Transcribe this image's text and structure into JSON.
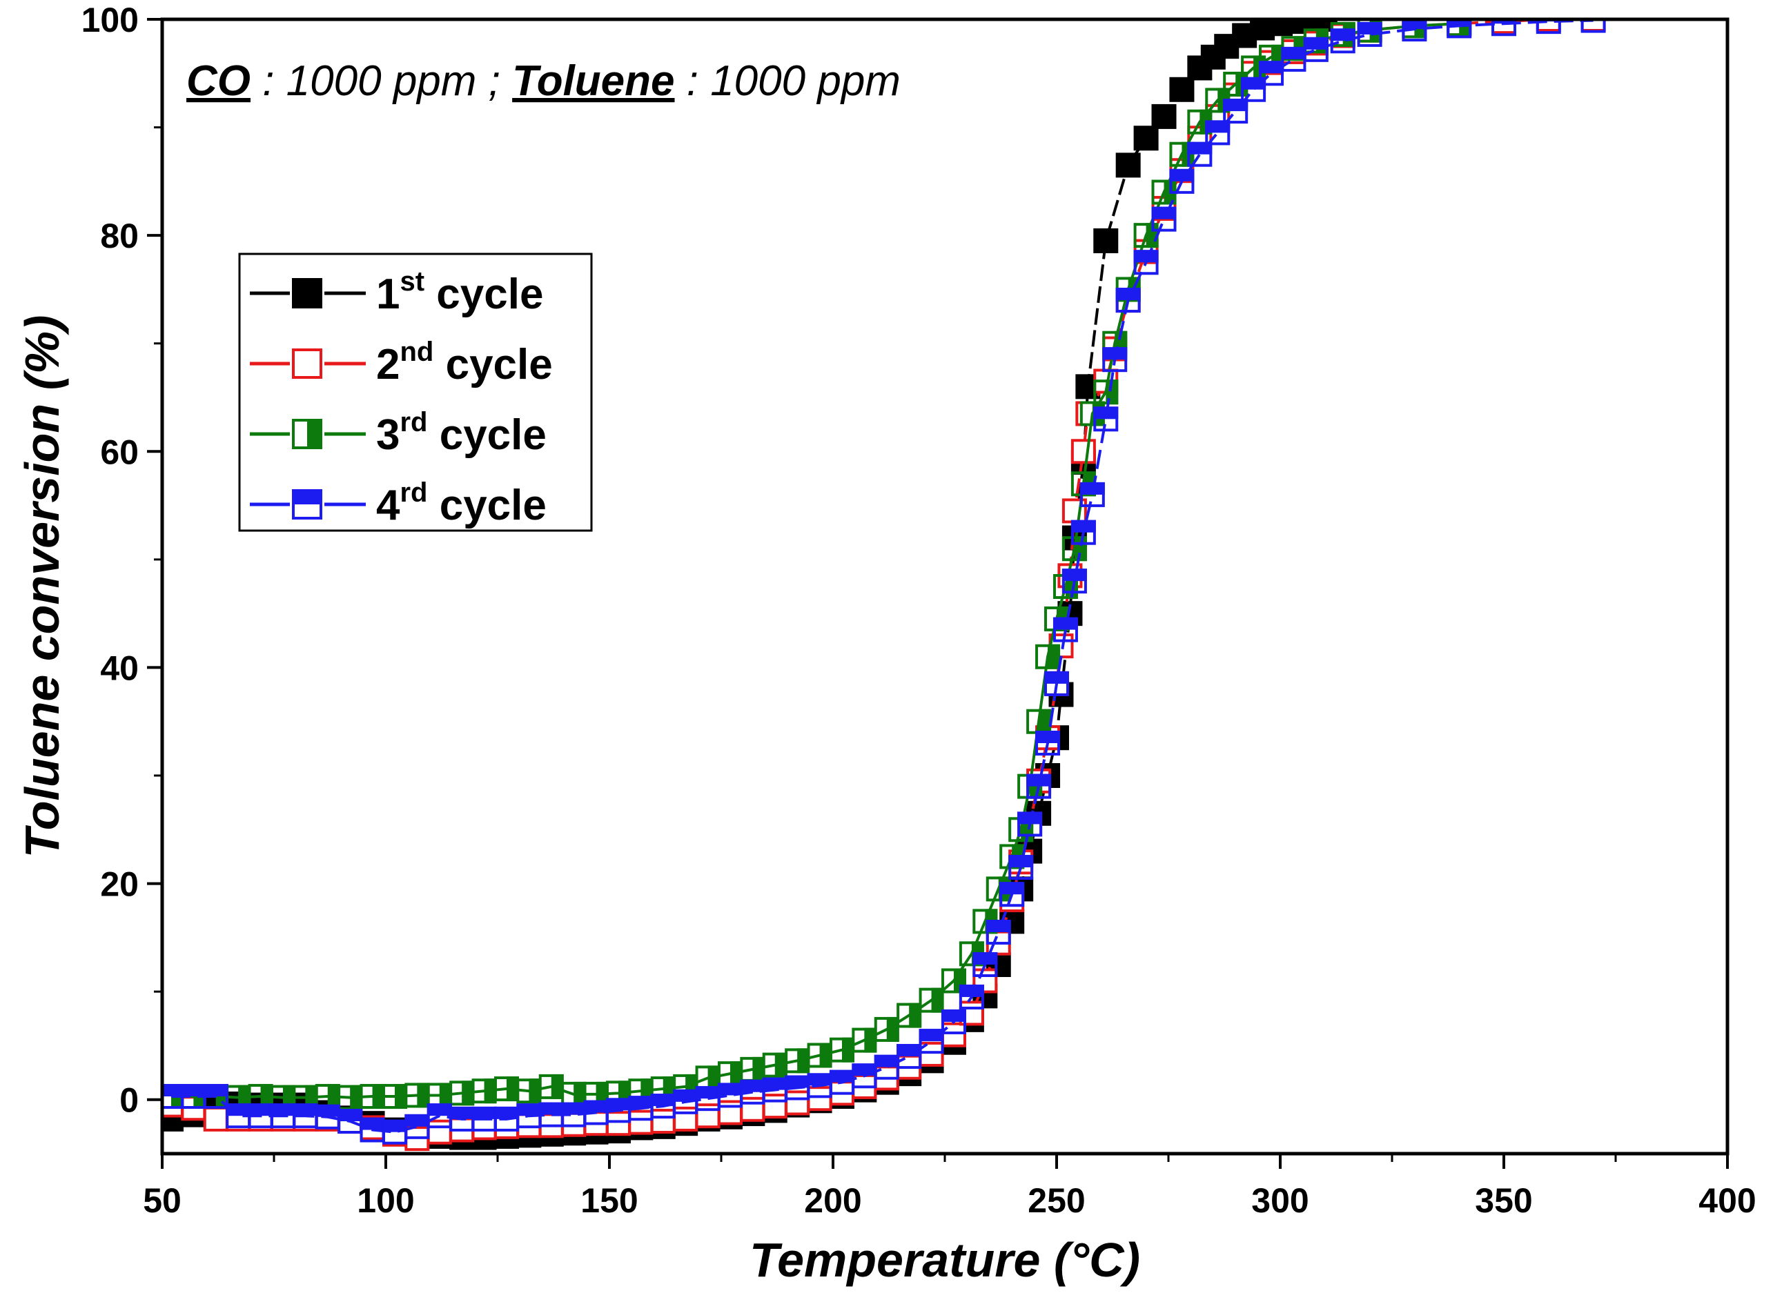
{
  "chart_data": {
    "type": "scatter",
    "title": "",
    "annotation": {
      "part1_bold": "CO",
      "part2": " : 1000 ppm ; ",
      "part3_bold": "Toluene",
      "part4": " : 1000 ppm"
    },
    "xlabel": "Temperature (°C)",
    "ylabel": "Toluene conversion (%)",
    "xlim": [
      50,
      400
    ],
    "ylim": [
      -5,
      100
    ],
    "xticks": [
      50,
      100,
      150,
      200,
      250,
      300,
      350,
      400
    ],
    "yticks": [
      0,
      20,
      40,
      60,
      80,
      100
    ],
    "grid": false,
    "legend_position": "upper-left",
    "series": [
      {
        "name": "1st cycle",
        "label_num": "1",
        "label_sup": "st",
        "label_rest": " cycle",
        "color": "#000000",
        "marker": "square-filled",
        "dash": "24,8",
        "points": [
          [
            52,
            -1.8
          ],
          [
            57,
            -1.4
          ],
          [
            62,
            -0.5
          ],
          [
            67,
            -0.4
          ],
          [
            72,
            -0.5
          ],
          [
            77,
            -0.5
          ],
          [
            82,
            -0.5
          ],
          [
            87,
            -1.2
          ],
          [
            92,
            -1.7
          ],
          [
            97,
            -2.2
          ],
          [
            102,
            -2.8
          ],
          [
            107,
            -3.3
          ],
          [
            112,
            -3.4
          ],
          [
            117,
            -3.5
          ],
          [
            122,
            -3.5
          ],
          [
            127,
            -3.4
          ],
          [
            132,
            -3.3
          ],
          [
            137,
            -3.2
          ],
          [
            142,
            -3.1
          ],
          [
            147,
            -3.0
          ],
          [
            152,
            -2.9
          ],
          [
            157,
            -2.6
          ],
          [
            162,
            -2.5
          ],
          [
            167,
            -2.2
          ],
          [
            172,
            -1.8
          ],
          [
            177,
            -1.6
          ],
          [
            182,
            -1.3
          ],
          [
            187,
            -1.0
          ],
          [
            192,
            -0.5
          ],
          [
            197,
            -0.1
          ],
          [
            202,
            0.3
          ],
          [
            207,
            0.9
          ],
          [
            212,
            1.6
          ],
          [
            217,
            2.4
          ],
          [
            222,
            3.6
          ],
          [
            227,
            5.3
          ],
          [
            231,
            7.4
          ],
          [
            234,
            9.6
          ],
          [
            237,
            12.5
          ],
          [
            240,
            16.5
          ],
          [
            242,
            19.5
          ],
          [
            244,
            23.0
          ],
          [
            246,
            26.5
          ],
          [
            248,
            30.0
          ],
          [
            250,
            33.5
          ],
          [
            251,
            37.5
          ],
          [
            253,
            45.0
          ],
          [
            254,
            52.0
          ],
          [
            256,
            59.0
          ],
          [
            257,
            66.0
          ],
          [
            261,
            79.5
          ],
          [
            266,
            86.5
          ],
          [
            270,
            89.0
          ],
          [
            274,
            91.0
          ],
          [
            278,
            93.5
          ],
          [
            282,
            95.5
          ],
          [
            285,
            96.5
          ],
          [
            288,
            97.5
          ],
          [
            292,
            98.5
          ],
          [
            296,
            99.2
          ],
          [
            300,
            99.6
          ],
          [
            305,
            99.8
          ],
          [
            310,
            100
          ],
          [
            320,
            100
          ],
          [
            330,
            100
          ],
          [
            340,
            100
          ],
          [
            350,
            100
          ]
        ]
      },
      {
        "name": "2nd cycle",
        "label_num": "2",
        "label_sup": "nd",
        "label_rest": " cycle",
        "color": "#e8191a",
        "marker": "square-open",
        "dash": "28,10",
        "points": [
          [
            52,
            -0.5
          ],
          [
            57,
            -0.8
          ],
          [
            62,
            -1.8
          ],
          [
            67,
            -1.8
          ],
          [
            72,
            -1.8
          ],
          [
            77,
            -1.8
          ],
          [
            82,
            -1.8
          ],
          [
            87,
            -1.8
          ],
          [
            92,
            -2.0
          ],
          [
            97,
            -2.6
          ],
          [
            102,
            -3.2
          ],
          [
            107,
            -3.6
          ],
          [
            112,
            -3.0
          ],
          [
            117,
            -2.8
          ],
          [
            122,
            -2.6
          ],
          [
            127,
            -2.5
          ],
          [
            132,
            -2.4
          ],
          [
            137,
            -2.4
          ],
          [
            142,
            -2.3
          ],
          [
            147,
            -2.2
          ],
          [
            152,
            -2.2
          ],
          [
            157,
            -2.1
          ],
          [
            162,
            -2.0
          ],
          [
            167,
            -1.8
          ],
          [
            172,
            -1.5
          ],
          [
            177,
            -1.2
          ],
          [
            182,
            -0.9
          ],
          [
            187,
            -0.6
          ],
          [
            192,
            -0.3
          ],
          [
            197,
            0.1
          ],
          [
            202,
            0.6
          ],
          [
            207,
            1.2
          ],
          [
            212,
            2.0
          ],
          [
            217,
            3.0
          ],
          [
            222,
            4.2
          ],
          [
            227,
            6.0
          ],
          [
            231,
            8.0
          ],
          [
            234,
            11.0
          ],
          [
            237,
            14.5
          ],
          [
            240,
            18.5
          ],
          [
            242,
            22.0
          ],
          [
            244,
            25.5
          ],
          [
            246,
            29.5
          ],
          [
            248,
            33.5
          ],
          [
            250,
            38.5
          ],
          [
            251,
            42.0
          ],
          [
            253,
            48.5
          ],
          [
            254,
            54.5
          ],
          [
            256,
            60.0
          ],
          [
            257,
            63.5
          ],
          [
            261,
            66.5
          ],
          [
            263,
            69.5
          ],
          [
            266,
            74.0
          ],
          [
            270,
            78.5
          ],
          [
            274,
            82.5
          ],
          [
            278,
            86.0
          ],
          [
            282,
            89.0
          ],
          [
            286,
            91.0
          ],
          [
            290,
            93.0
          ],
          [
            294,
            95.0
          ],
          [
            298,
            96.0
          ],
          [
            303,
            97.0
          ],
          [
            308,
            97.8
          ],
          [
            314,
            98.5
          ],
          [
            320,
            99.0
          ],
          [
            330,
            99.4
          ],
          [
            340,
            99.6
          ],
          [
            350,
            99.8
          ],
          [
            360,
            100
          ],
          [
            370,
            100
          ]
        ]
      },
      {
        "name": "3rd cycle",
        "label_num": "3",
        "label_sup": "rd",
        "label_rest": " cycle",
        "color": "#0d7a0d",
        "marker": "square-half",
        "dash": "",
        "points": [
          [
            52,
            0.3
          ],
          [
            57,
            0.3
          ],
          [
            62,
            0.3
          ],
          [
            67,
            0.2
          ],
          [
            72,
            0.3
          ],
          [
            77,
            0.2
          ],
          [
            82,
            0.2
          ],
          [
            87,
            0.3
          ],
          [
            92,
            0.2
          ],
          [
            97,
            0.3
          ],
          [
            102,
            0.3
          ],
          [
            107,
            0.4
          ],
          [
            112,
            0.4
          ],
          [
            117,
            0.6
          ],
          [
            122,
            0.8
          ],
          [
            127,
            1.0
          ],
          [
            132,
            0.8
          ],
          [
            137,
            1.2
          ],
          [
            142,
            0.5
          ],
          [
            147,
            0.5
          ],
          [
            152,
            0.6
          ],
          [
            157,
            0.8
          ],
          [
            162,
            1.0
          ],
          [
            167,
            1.2
          ],
          [
            172,
            2.0
          ],
          [
            177,
            2.4
          ],
          [
            182,
            2.8
          ],
          [
            187,
            3.2
          ],
          [
            192,
            3.6
          ],
          [
            197,
            4.1
          ],
          [
            202,
            4.6
          ],
          [
            207,
            5.5
          ],
          [
            212,
            6.5
          ],
          [
            217,
            7.8
          ],
          [
            222,
            9.2
          ],
          [
            227,
            11.0
          ],
          [
            231,
            13.5
          ],
          [
            234,
            16.5
          ],
          [
            237,
            19.5
          ],
          [
            240,
            22.5
          ],
          [
            242,
            25.0
          ],
          [
            244,
            29.0
          ],
          [
            246,
            35.0
          ],
          [
            248,
            41.0
          ],
          [
            250,
            44.5
          ],
          [
            252,
            47.5
          ],
          [
            254,
            51.0
          ],
          [
            256,
            57.0
          ],
          [
            258,
            63.5
          ],
          [
            261,
            65.5
          ],
          [
            263,
            70.0
          ],
          [
            266,
            75.0
          ],
          [
            270,
            80.0
          ],
          [
            274,
            84.0
          ],
          [
            278,
            87.5
          ],
          [
            282,
            90.5
          ],
          [
            286,
            92.5
          ],
          [
            290,
            94.0
          ],
          [
            294,
            95.5
          ],
          [
            298,
            96.5
          ],
          [
            303,
            97.3
          ],
          [
            308,
            98.0
          ],
          [
            314,
            98.6
          ],
          [
            320,
            99.0
          ],
          [
            330,
            99.4
          ],
          [
            340,
            99.6
          ]
        ]
      },
      {
        "name": "4rd cycle",
        "label_num": "4",
        "label_sup": "rd",
        "label_rest": " cycle",
        "color": "#1c1cf0",
        "marker": "square-top-half",
        "dash": "28,10",
        "points": [
          [
            52,
            0.3
          ],
          [
            57,
            0.3
          ],
          [
            62,
            0.3
          ],
          [
            67,
            -1.5
          ],
          [
            72,
            -1.5
          ],
          [
            77,
            -1.5
          ],
          [
            82,
            -1.5
          ],
          [
            87,
            -1.6
          ],
          [
            92,
            -2.0
          ],
          [
            97,
            -2.8
          ],
          [
            102,
            -3.0
          ],
          [
            107,
            -2.5
          ],
          [
            112,
            -1.5
          ],
          [
            117,
            -1.8
          ],
          [
            122,
            -1.8
          ],
          [
            127,
            -1.8
          ],
          [
            132,
            -1.5
          ],
          [
            137,
            -1.4
          ],
          [
            142,
            -1.4
          ],
          [
            147,
            -1.2
          ],
          [
            152,
            -1.0
          ],
          [
            157,
            -0.8
          ],
          [
            162,
            -0.6
          ],
          [
            167,
            -0.2
          ],
          [
            172,
            0.1
          ],
          [
            177,
            0.4
          ],
          [
            182,
            0.7
          ],
          [
            187,
            0.9
          ],
          [
            192,
            1.1
          ],
          [
            197,
            1.3
          ],
          [
            202,
            1.6
          ],
          [
            207,
            2.2
          ],
          [
            212,
            3.0
          ],
          [
            217,
            4.0
          ],
          [
            222,
            5.4
          ],
          [
            227,
            7.2
          ],
          [
            231,
            9.5
          ],
          [
            234,
            12.5
          ],
          [
            237,
            15.5
          ],
          [
            240,
            19.0
          ],
          [
            242,
            21.5
          ],
          [
            244,
            25.5
          ],
          [
            246,
            29.0
          ],
          [
            248,
            33.0
          ],
          [
            250,
            38.5
          ],
          [
            252,
            43.5
          ],
          [
            254,
            48.0
          ],
          [
            256,
            52.5
          ],
          [
            258,
            56.0
          ],
          [
            261,
            63.0
          ],
          [
            263,
            68.5
          ],
          [
            266,
            74.0
          ],
          [
            270,
            77.5
          ],
          [
            274,
            81.5
          ],
          [
            278,
            85.0
          ],
          [
            282,
            87.5
          ],
          [
            286,
            89.5
          ],
          [
            290,
            91.5
          ],
          [
            294,
            93.5
          ],
          [
            298,
            95.0
          ],
          [
            303,
            96.3
          ],
          [
            308,
            97.2
          ],
          [
            314,
            98.0
          ],
          [
            320,
            98.6
          ],
          [
            330,
            99.1
          ],
          [
            340,
            99.4
          ],
          [
            350,
            99.6
          ],
          [
            360,
            99.8
          ],
          [
            370,
            99.9
          ]
        ]
      }
    ]
  }
}
